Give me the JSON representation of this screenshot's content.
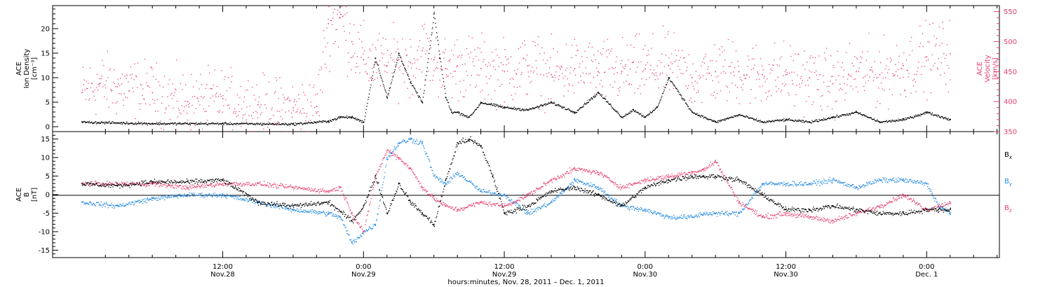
{
  "colors": {
    "black": "#000000",
    "pink": "#e83e6c",
    "blue": "#1e88e5"
  },
  "chart_data": [
    {
      "type": "scatter",
      "panel": "top",
      "left_axis": {
        "label_lines": [
          "ACE",
          "Ion Density",
          "[cm⁻³]"
        ],
        "ticks": [
          "0",
          "5",
          "10",
          "15",
          "20"
        ],
        "ylim": [
          -1,
          24.7
        ]
      },
      "right_axis": {
        "label_lines": [
          "ACE",
          "Velocity",
          "[km/s]"
        ],
        "ticks": [
          "350",
          "400",
          "450",
          "500",
          "550"
        ],
        "ylim": [
          350,
          560
        ]
      },
      "series": [
        {
          "axis": "left",
          "color_key": "black",
          "x": [
            0,
            6,
            12,
            18,
            21,
            22,
            23,
            24,
            25,
            26,
            27,
            28,
            29,
            30,
            30.5,
            31,
            31.5,
            32,
            33,
            34,
            36,
            38,
            40,
            42,
            44,
            46,
            47,
            48,
            49,
            50,
            52,
            54,
            56,
            58,
            60,
            62,
            64,
            66,
            68,
            70,
            72,
            74
          ],
          "values": [
            1,
            0.7,
            0.7,
            0.6,
            1.2,
            2,
            2,
            1,
            14,
            6,
            15,
            9,
            5,
            23,
            14,
            6,
            3,
            3,
            2,
            5,
            4,
            3.5,
            5,
            3,
            7,
            2,
            3.5,
            2,
            4,
            10,
            3,
            1,
            2.5,
            1,
            1.5,
            1,
            2,
            3,
            1,
            1.5,
            3,
            1.5
          ]
        },
        {
          "axis": "right",
          "color_key": "pink",
          "x": [
            0,
            1.5,
            3,
            6,
            9,
            12,
            15,
            18,
            20,
            21,
            22,
            23,
            24,
            25,
            26,
            27,
            28,
            29,
            30,
            31,
            32,
            34,
            36,
            38,
            40,
            42,
            44,
            46,
            48,
            50,
            52,
            54,
            56,
            58,
            60,
            62,
            64,
            66,
            68,
            70,
            72,
            74
          ],
          "values": [
            415,
            430,
            425,
            415,
            400,
            405,
            395,
            390,
            392,
            530,
            540,
            500,
            470,
            465,
            460,
            470,
            465,
            485,
            470,
            455,
            460,
            455,
            450,
            460,
            445,
            455,
            450,
            450,
            455,
            460,
            440,
            450,
            450,
            445,
            445,
            440,
            430,
            450,
            445,
            460,
            475,
            480
          ]
        }
      ]
    },
    {
      "type": "scatter",
      "panel": "bottom",
      "left_axis": {
        "label_lines": [
          "ACE",
          "B",
          "[nT]"
        ],
        "ticks": [
          "-15",
          "-10",
          "-5",
          "0",
          "5",
          "10",
          "15"
        ],
        "ylim": [
          -17,
          17
        ]
      },
      "legend": [
        "Bx",
        "By",
        "Bz"
      ],
      "series": [
        {
          "name": "Bx",
          "color_key": "black",
          "x": [
            0,
            3,
            6,
            9,
            12,
            15,
            18,
            21,
            23,
            24,
            25,
            26,
            27,
            28,
            29,
            30,
            31,
            32,
            33,
            34,
            35,
            36,
            38,
            40,
            42,
            44,
            46,
            48,
            50,
            52,
            53,
            54,
            56,
            58,
            60,
            62,
            64,
            66,
            68,
            70,
            72,
            73,
            74
          ],
          "values": [
            3,
            2.5,
            3.5,
            3.5,
            4,
            -2,
            -3,
            -2,
            -7,
            -3,
            5,
            -5,
            3,
            -2,
            -5,
            -8,
            4,
            14,
            15,
            13,
            5,
            -5,
            -3,
            1,
            2,
            0,
            -3,
            2,
            4,
            5,
            5,
            5,
            4,
            0,
            -4,
            -4,
            -3,
            -4,
            -5,
            -5,
            -4,
            -4,
            -4
          ]
        },
        {
          "name": "By",
          "color_key": "blue",
          "x": [
            0,
            3,
            6,
            9,
            12,
            15,
            18,
            21,
            22,
            23,
            24,
            25,
            26,
            27,
            28,
            29,
            30,
            31,
            32,
            34,
            36,
            38,
            40,
            42,
            44,
            46,
            48,
            50,
            52,
            53,
            54,
            56,
            58,
            60,
            62,
            64,
            66,
            68,
            70,
            72,
            73,
            74
          ],
          "values": [
            -2,
            -3,
            -1,
            0,
            0,
            -2,
            -4,
            -5,
            -6,
            -13,
            -10,
            -8,
            10,
            14,
            15,
            14,
            5,
            3,
            6,
            1,
            0,
            -5,
            -2,
            4,
            2,
            -3,
            -4,
            -6,
            -6,
            -5,
            -5,
            -5,
            3,
            3,
            3,
            4,
            2,
            4,
            4,
            3,
            -3,
            -5
          ]
        },
        {
          "name": "Bz",
          "color_key": "pink",
          "x": [
            0,
            3,
            6,
            9,
            12,
            15,
            18,
            21,
            22,
            23,
            24,
            25,
            26,
            27,
            28,
            29,
            30,
            31,
            32,
            34,
            36,
            38,
            40,
            42,
            44,
            46,
            48,
            50,
            52,
            53,
            54,
            56,
            58,
            60,
            62,
            64,
            66,
            68,
            70,
            72,
            73,
            74
          ],
          "values": [
            3,
            3,
            3,
            2,
            3,
            3,
            2,
            1,
            2,
            -5,
            -10,
            5,
            12,
            10,
            7,
            2,
            -1,
            -3,
            -4,
            -2,
            -3,
            0,
            4,
            7,
            6,
            2,
            4,
            5,
            6,
            7,
            9,
            -2,
            -6,
            -5,
            -6,
            -7,
            -5,
            -3,
            0,
            -4,
            -3,
            -2
          ]
        }
      ]
    }
  ],
  "x_axis": {
    "ticks": [
      {
        "time": "12:00",
        "date": "Nov.28"
      },
      {
        "time": "0:00",
        "date": "Nov.29"
      },
      {
        "time": "12:00",
        "date": "Nov.29"
      },
      {
        "time": "0:00",
        "date": "Nov.30"
      },
      {
        "time": "12:00",
        "date": "Nov.30"
      },
      {
        "time": "0:00",
        "date": "Dec. 1"
      }
    ],
    "tick_hours": [
      12,
      24,
      36,
      48,
      60,
      72
    ],
    "xlim": [
      -2.5,
      78.2
    ],
    "label": "hours:minutes, Nov. 28, 2011 – Dec. 1, 2011"
  }
}
